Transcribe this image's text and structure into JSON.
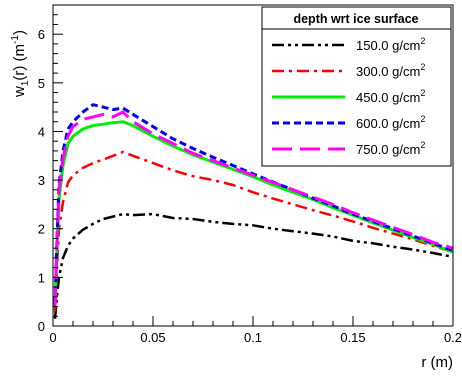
{
  "chart_data": {
    "type": "line",
    "xlabel": "r (m)",
    "ylabel_main": "w",
    "ylabel_sub": "1",
    "ylabel_mid": "(r) (m",
    "ylabel_sup": "-1",
    "ylabel_end": ")",
    "xlim": [
      0,
      0.2
    ],
    "ylim": [
      0,
      6.6
    ],
    "x_ticks": [
      {
        "value": 0,
        "label": "0"
      },
      {
        "value": 0.05,
        "label": "0.05"
      },
      {
        "value": 0.1,
        "label": "0.1"
      },
      {
        "value": 0.15,
        "label": "0.15"
      },
      {
        "value": 0.2,
        "label": "0.2"
      }
    ],
    "y_ticks": [
      {
        "value": 0,
        "label": "0"
      },
      {
        "value": 1,
        "label": "1"
      },
      {
        "value": 2,
        "label": "2"
      },
      {
        "value": 3,
        "label": "3"
      },
      {
        "value": 4,
        "label": "4"
      },
      {
        "value": 5,
        "label": "5"
      },
      {
        "value": 6,
        "label": "6"
      }
    ],
    "legend": {
      "title": "depth wrt ice surface",
      "placement": "top-right",
      "unit_base": "g/cm",
      "unit_sup": "2"
    },
    "grid": false,
    "series": [
      {
        "name": "150.0",
        "color": "#000000",
        "dash": "dashdotdot",
        "width": 2.5,
        "x": [
          0.001,
          0.002,
          0.003,
          0.005,
          0.0075,
          0.01,
          0.015,
          0.02,
          0.025,
          0.03,
          0.035,
          0.04,
          0.05,
          0.06,
          0.07,
          0.08,
          0.09,
          0.1,
          0.11,
          0.12,
          0.13,
          0.14,
          0.15,
          0.16,
          0.17,
          0.18,
          0.19,
          0.2
        ],
        "y": [
          0.15,
          0.6,
          1.0,
          1.4,
          1.65,
          1.8,
          1.98,
          2.1,
          2.2,
          2.25,
          2.3,
          2.28,
          2.3,
          2.22,
          2.2,
          2.14,
          2.1,
          2.07,
          2.0,
          1.95,
          1.9,
          1.84,
          1.75,
          1.7,
          1.63,
          1.57,
          1.5,
          1.42
        ]
      },
      {
        "name": "300.0",
        "color": "#ff0000",
        "dash": "dashdot",
        "width": 2.5,
        "x": [
          0.001,
          0.002,
          0.003,
          0.005,
          0.0075,
          0.01,
          0.015,
          0.02,
          0.025,
          0.03,
          0.035,
          0.04,
          0.05,
          0.06,
          0.07,
          0.08,
          0.09,
          0.1,
          0.11,
          0.12,
          0.13,
          0.14,
          0.15,
          0.16,
          0.17,
          0.18,
          0.19,
          0.2
        ],
        "y": [
          0.3,
          1.2,
          2.0,
          2.55,
          2.95,
          3.1,
          3.25,
          3.35,
          3.42,
          3.5,
          3.58,
          3.5,
          3.35,
          3.2,
          3.08,
          3.0,
          2.9,
          2.75,
          2.62,
          2.5,
          2.38,
          2.27,
          2.15,
          2.02,
          1.9,
          1.78,
          1.65,
          1.52
        ]
      },
      {
        "name": "450.0",
        "color": "#00ee00",
        "dash": "solid",
        "width": 3,
        "x": [
          0.001,
          0.002,
          0.003,
          0.005,
          0.0075,
          0.01,
          0.015,
          0.02,
          0.025,
          0.03,
          0.035,
          0.04,
          0.05,
          0.06,
          0.07,
          0.08,
          0.09,
          0.1,
          0.11,
          0.12,
          0.13,
          0.14,
          0.15,
          0.16,
          0.17,
          0.18,
          0.19,
          0.2
        ],
        "y": [
          0.4,
          1.6,
          2.6,
          3.3,
          3.75,
          3.9,
          4.05,
          4.12,
          4.15,
          4.18,
          4.2,
          4.12,
          3.9,
          3.7,
          3.52,
          3.37,
          3.22,
          3.07,
          2.9,
          2.75,
          2.6,
          2.43,
          2.28,
          2.12,
          1.97,
          1.82,
          1.68,
          1.52
        ]
      },
      {
        "name": "600.0",
        "color": "#0000ee",
        "dash": "dash",
        "width": 3,
        "x": [
          0.001,
          0.002,
          0.003,
          0.005,
          0.0075,
          0.01,
          0.015,
          0.02,
          0.025,
          0.03,
          0.035,
          0.04,
          0.05,
          0.06,
          0.07,
          0.08,
          0.09,
          0.1,
          0.11,
          0.12,
          0.13,
          0.14,
          0.15,
          0.16,
          0.17,
          0.18,
          0.19,
          0.2
        ],
        "y": [
          0.45,
          1.8,
          2.9,
          3.6,
          4.05,
          4.2,
          4.4,
          4.55,
          4.5,
          4.45,
          4.48,
          4.35,
          4.1,
          3.85,
          3.65,
          3.47,
          3.3,
          3.13,
          2.96,
          2.8,
          2.63,
          2.47,
          2.3,
          2.15,
          2.0,
          1.85,
          1.7,
          1.55
        ]
      },
      {
        "name": "750.0",
        "color": "#ff00ff",
        "dash": "longdash",
        "width": 3,
        "x": [
          0.001,
          0.002,
          0.003,
          0.005,
          0.0075,
          0.01,
          0.015,
          0.02,
          0.025,
          0.03,
          0.035,
          0.04,
          0.05,
          0.06,
          0.07,
          0.08,
          0.09,
          0.1,
          0.11,
          0.12,
          0.13,
          0.14,
          0.15,
          0.16,
          0.17,
          0.18,
          0.19,
          0.2
        ],
        "y": [
          0.4,
          1.7,
          2.8,
          3.45,
          3.9,
          4.1,
          4.25,
          4.3,
          4.35,
          4.3,
          4.4,
          4.2,
          3.95,
          3.75,
          3.55,
          3.4,
          3.25,
          3.1,
          2.95,
          2.8,
          2.65,
          2.5,
          2.33,
          2.18,
          2.03,
          1.88,
          1.72,
          1.6
        ]
      }
    ]
  }
}
